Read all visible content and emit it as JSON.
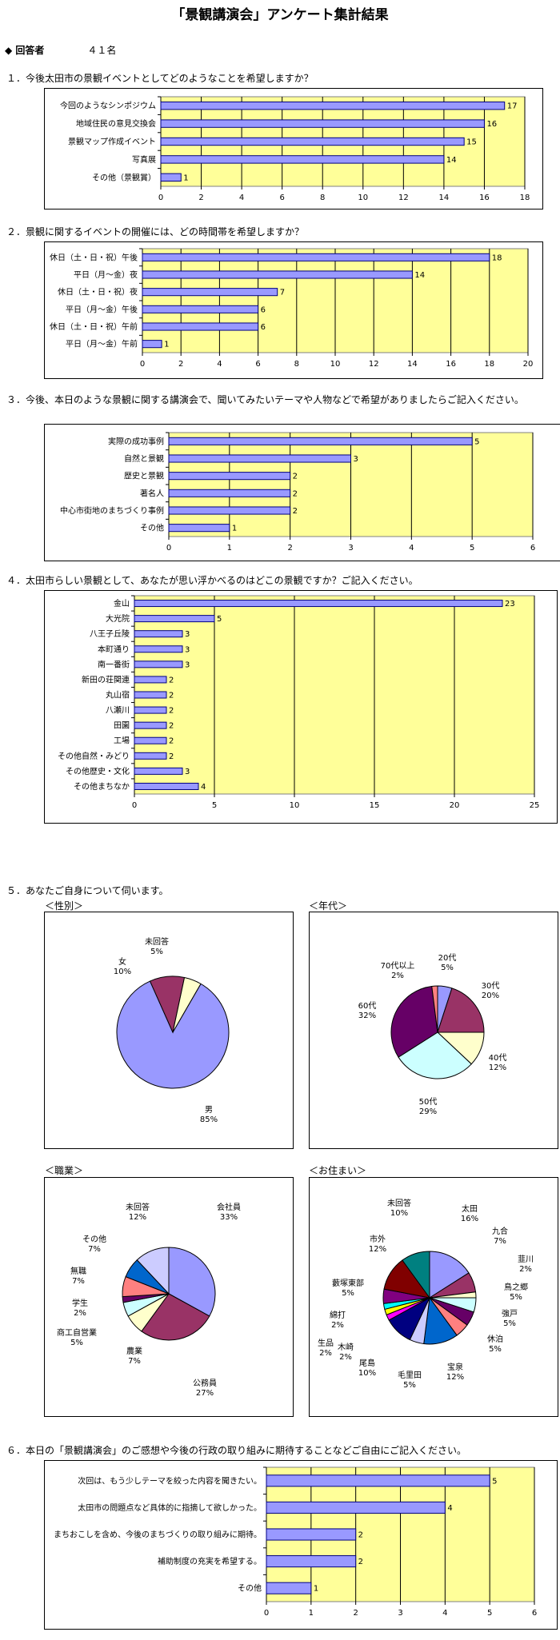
{
  "title": "「景観講演会」アンケート集計結果",
  "respondents": {
    "label": "◆ 回答者",
    "value": "４１名"
  },
  "questions": [
    "１．今後太田市の景観イベントとしてどのようなことを希望しますか？",
    "２．景観に関するイベントの開催には、どの時間帯を希望しますか？",
    "３．今後、本日のような景観に関する講演会で、聞いてみたいテーマや人物などで希望がありましたらご記入ください。",
    "４．太田市らしい景観として、あなたが思い浮かべるのはどこの景観ですか？ご記入ください。",
    "５．あなたご自身について伺います。",
    "６．本日の「景観講演会」のご感想や今後の行政の取り組みに期待することなどご自由にご記入ください。"
  ],
  "pie_titles": [
    "＜性別＞",
    "＜年代＞",
    "＜職業＞",
    "＜お住まい＞"
  ],
  "colors": {
    "plot_bg": "#ffff99",
    "bar": "#9999ff",
    "bar_border": "#000080"
  },
  "chart_data": [
    {
      "type": "bar",
      "orientation": "horizontal",
      "id": "q1",
      "categories": [
        "今回のようなシンポジウム",
        "地域住民の意見交換会",
        "景観マップ作成イベント",
        "写真展",
        "その他（景観賞）"
      ],
      "values": [
        17,
        16,
        15,
        14,
        1
      ],
      "xlim": [
        0,
        18
      ],
      "xticks": [
        0,
        2,
        4,
        6,
        8,
        10,
        12,
        14,
        16,
        18
      ]
    },
    {
      "type": "bar",
      "orientation": "horizontal",
      "id": "q2",
      "categories": [
        "休日（土・日・祝）午後",
        "平日（月～金）夜",
        "休日（土・日・祝）夜",
        "平日（月～金）午後",
        "休日（土・日・祝）午前",
        "平日（月～金）午前"
      ],
      "values": [
        18,
        14,
        7,
        6,
        6,
        1
      ],
      "xlim": [
        0,
        20
      ],
      "xticks": [
        0,
        2,
        4,
        6,
        8,
        10,
        12,
        14,
        16,
        18,
        20
      ]
    },
    {
      "type": "bar",
      "orientation": "horizontal",
      "id": "q3",
      "categories": [
        "実際の成功事例",
        "自然と景観",
        "歴史と景観",
        "著名人",
        "中心市街地のまちづくり事例",
        "その他"
      ],
      "values": [
        5,
        3,
        2,
        2,
        2,
        1
      ],
      "xlim": [
        0,
        6
      ],
      "xticks": [
        0,
        1,
        2,
        3,
        4,
        5,
        6
      ]
    },
    {
      "type": "bar",
      "orientation": "horizontal",
      "id": "q4",
      "categories": [
        "金山",
        "大光院",
        "八王子丘陵",
        "本町通り",
        "南一番街",
        "新田の荘関連",
        "丸山宿",
        "八瀬川",
        "田園",
        "工場",
        "その他自然・みどり",
        "その他歴史・文化",
        "その他まちなか"
      ],
      "values": [
        23,
        5,
        3,
        3,
        3,
        2,
        2,
        2,
        2,
        2,
        2,
        3,
        4
      ],
      "xlim": [
        0,
        25
      ],
      "xticks": [
        0,
        5,
        10,
        15,
        20,
        25
      ]
    },
    {
      "type": "pie",
      "id": "gender",
      "slices": [
        {
          "label": "男",
          "pct": "85%",
          "value": 85,
          "color": "#9999ff"
        },
        {
          "label": "女",
          "pct": "10%",
          "value": 10,
          "color": "#993366"
        },
        {
          "label": "未回答",
          "pct": "5%",
          "value": 5,
          "color": "#ffffcc"
        }
      ]
    },
    {
      "type": "pie",
      "id": "age",
      "slices": [
        {
          "label": "20代",
          "pct": "5%",
          "value": 5,
          "color": "#9999ff"
        },
        {
          "label": "30代",
          "pct": "20%",
          "value": 20,
          "color": "#993366"
        },
        {
          "label": "40代",
          "pct": "12%",
          "value": 12,
          "color": "#ffffcc"
        },
        {
          "label": "50代",
          "pct": "29%",
          "value": 29,
          "color": "#ccffff"
        },
        {
          "label": "60代",
          "pct": "32%",
          "value": 32,
          "color": "#660066"
        },
        {
          "label": "70代以上",
          "pct": "2%",
          "value": 2,
          "color": "#ff8080"
        }
      ]
    },
    {
      "type": "pie",
      "id": "occupation",
      "slices": [
        {
          "label": "会社員",
          "pct": "33%",
          "value": 33,
          "color": "#9999ff"
        },
        {
          "label": "公務員",
          "pct": "27%",
          "value": 27,
          "color": "#993366"
        },
        {
          "label": "農業",
          "pct": "7%",
          "value": 7,
          "color": "#ffffcc"
        },
        {
          "label": "商工自営業",
          "pct": "5%",
          "value": 5,
          "color": "#ccffff"
        },
        {
          "label": "学生",
          "pct": "2%",
          "value": 2,
          "color": "#660066"
        },
        {
          "label": "無職",
          "pct": "7%",
          "value": 7,
          "color": "#ff8080"
        },
        {
          "label": "その他",
          "pct": "7%",
          "value": 7,
          "color": "#0066cc"
        },
        {
          "label": "未回答",
          "pct": "12%",
          "value": 12,
          "color": "#ccccff"
        }
      ]
    },
    {
      "type": "pie",
      "id": "residence",
      "slices": [
        {
          "label": "太田",
          "pct": "16%",
          "value": 16,
          "color": "#9999ff"
        },
        {
          "label": "九合",
          "pct": "7%",
          "value": 7,
          "color": "#993366"
        },
        {
          "label": "韮川",
          "pct": "2%",
          "value": 2,
          "color": "#ffffcc"
        },
        {
          "label": "鳥之郷",
          "pct": "5%",
          "value": 5,
          "color": "#ccffff"
        },
        {
          "label": "強戸",
          "pct": "5%",
          "value": 5,
          "color": "#660066"
        },
        {
          "label": "休泊",
          "pct": "5%",
          "value": 5,
          "color": "#ff8080"
        },
        {
          "label": "宝泉",
          "pct": "12%",
          "value": 12,
          "color": "#0066cc"
        },
        {
          "label": "毛里田",
          "pct": "5%",
          "value": 5,
          "color": "#ccccff"
        },
        {
          "label": "尾島",
          "pct": "10%",
          "value": 10,
          "color": "#000080"
        },
        {
          "label": "木崎",
          "pct": "2%",
          "value": 2,
          "color": "#ff00ff"
        },
        {
          "label": "生品",
          "pct": "2%",
          "value": 2,
          "color": "#ffff00"
        },
        {
          "label": "綿打",
          "pct": "2%",
          "value": 2,
          "color": "#00ffff"
        },
        {
          "label": "藪塚東部",
          "pct": "5%",
          "value": 5,
          "color": "#800080"
        },
        {
          "label": "市外",
          "pct": "12%",
          "value": 12,
          "color": "#800000"
        },
        {
          "label": "未回答",
          "pct": "10%",
          "value": 10,
          "color": "#008080"
        }
      ]
    },
    {
      "type": "bar",
      "orientation": "horizontal",
      "id": "q6",
      "categories": [
        "次回は、もう少しテーマを絞った内容を聞きたい。",
        "太田市の問題点など具体的に指摘して欲しかった。",
        "まちおこしを含め、今後のまちづくりの取り組みに期待。",
        "補助制度の充実を希望する。",
        "その他"
      ],
      "values": [
        5,
        4,
        2,
        2,
        1
      ],
      "xlim": [
        0,
        6
      ],
      "xticks": [
        0,
        1,
        2,
        3,
        4,
        5,
        6
      ]
    }
  ]
}
